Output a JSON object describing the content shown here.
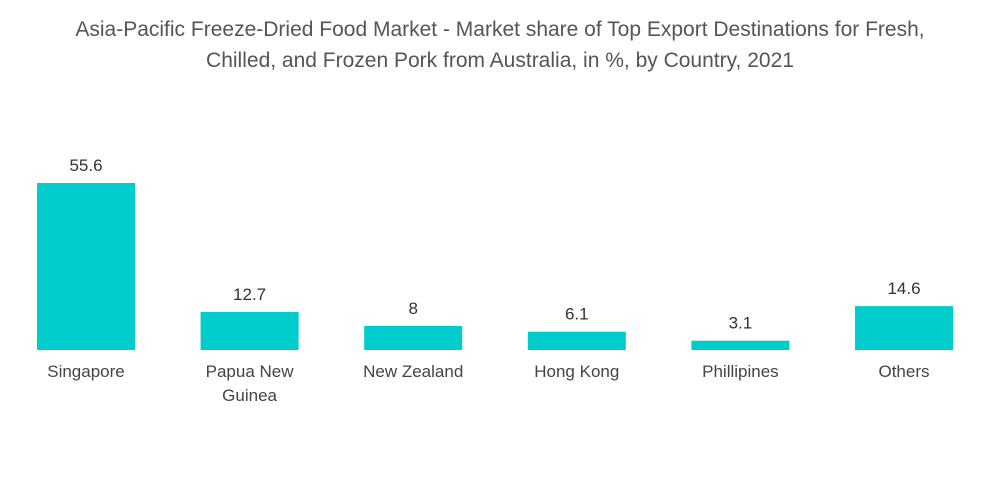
{
  "title_lines": [
    "Asia-Pacific Freeze-Dried Food Market - Market share of Top Export Destinations for Fresh,",
    "Chilled, and Frozen Pork from Australia, in %, by Country, 2021"
  ],
  "colors": {
    "bar": "#00cccc",
    "text": "#444444"
  },
  "chart_data": {
    "type": "bar",
    "title": "Asia-Pacific Freeze-Dried Food Market - Market share of Top Export Destinations for Fresh, Chilled, and Frozen Pork from Australia, in %, by Country, 2021",
    "categories": [
      "Singapore",
      "Papua New Guinea",
      "New Zealand",
      "Hong Kong",
      "Phillipines",
      "Others"
    ],
    "category_lines": [
      [
        "Singapore"
      ],
      [
        "Papua New",
        "Guinea"
      ],
      [
        "New Zealand"
      ],
      [
        "Hong Kong"
      ],
      [
        "Phillipines"
      ],
      [
        "Others"
      ]
    ],
    "values": [
      55.6,
      12.7,
      8,
      6.1,
      3.1,
      14.6
    ],
    "value_labels": [
      "55.6",
      "12.7",
      "8",
      "6.1",
      "3.1",
      "14.6"
    ],
    "xlabel": "",
    "ylabel": "",
    "ylim": [
      0,
      55.6
    ],
    "grid": false,
    "legend": "none"
  }
}
